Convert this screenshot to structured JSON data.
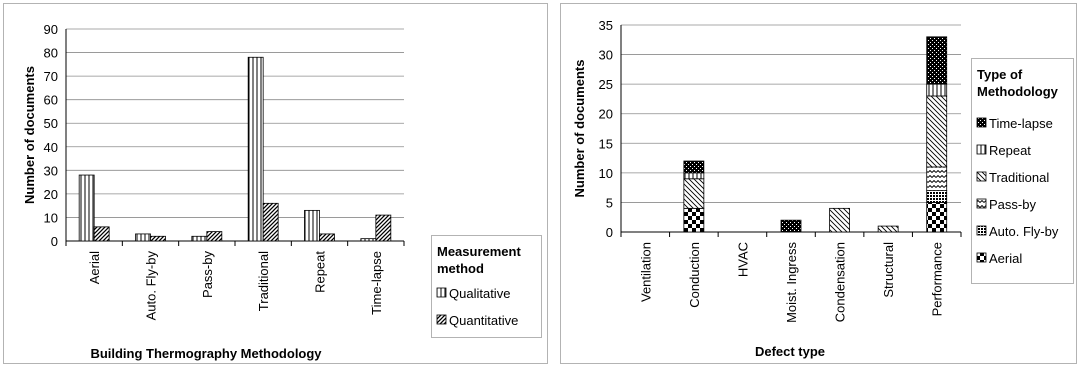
{
  "chart_data": [
    {
      "type": "bar",
      "categories": [
        "Aerial",
        "Auto. Fly-by",
        "Pass-by",
        "Traditional",
        "Repeat",
        "Time-lapse"
      ],
      "series": [
        {
          "name": "Qualitative",
          "values": [
            28,
            3,
            2,
            78,
            13,
            1
          ]
        },
        {
          "name": "Quantitative",
          "values": [
            6,
            2,
            4,
            16,
            3,
            11
          ]
        }
      ],
      "xlabel": "Building Thermography Methodology",
      "ylabel": "Number of documents",
      "ylim": [
        0,
        90
      ],
      "yticks": [
        0,
        10,
        20,
        30,
        40,
        50,
        60,
        70,
        80,
        90
      ],
      "legend_title": "Measurement method",
      "legend_title_lines": [
        "Measurement",
        "method"
      ],
      "legend_position": "bottom-right",
      "grid": true
    },
    {
      "type": "bar",
      "stacked": true,
      "categories": [
        "Ventilation",
        "Conduction",
        "HVAC",
        "Moist. Ingress",
        "Condensation",
        "Structural",
        "Performance"
      ],
      "series": [
        {
          "name": "Aerial",
          "values": [
            0,
            4,
            0,
            0,
            0,
            0,
            5
          ]
        },
        {
          "name": "Auto. Fly-by",
          "values": [
            0,
            0,
            0,
            0,
            0,
            0,
            2
          ]
        },
        {
          "name": "Pass-by",
          "values": [
            0,
            0,
            0,
            0,
            0,
            0,
            4
          ]
        },
        {
          "name": "Traditional",
          "values": [
            0,
            5,
            0,
            0,
            4,
            1,
            12
          ]
        },
        {
          "name": "Repeat",
          "values": [
            0,
            1,
            0,
            0,
            0,
            0,
            2
          ]
        },
        {
          "name": "Time-lapse",
          "values": [
            0,
            2,
            0,
            2,
            0,
            0,
            8
          ]
        }
      ],
      "xlabel": "Defect type",
      "ylabel": "Number of documents",
      "ylim": [
        0,
        35
      ],
      "yticks": [
        0,
        5,
        10,
        15,
        20,
        25,
        30,
        35
      ],
      "legend_title": "Type of Methodology",
      "legend_title_lines": [
        "Type of",
        "Methodology"
      ],
      "legend_order": [
        "Time-lapse",
        "Repeat",
        "Traditional",
        "Pass-by",
        "Auto. Fly-by",
        "Aerial"
      ],
      "legend_position": "right",
      "grid": true
    }
  ]
}
